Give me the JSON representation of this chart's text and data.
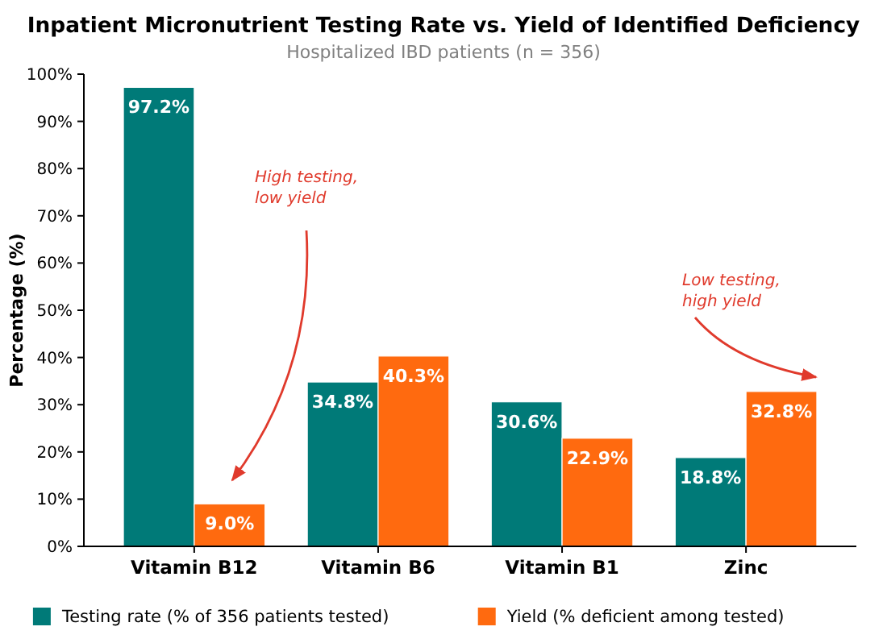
{
  "chart_data": {
    "type": "bar",
    "title": "Inpatient Micronutrient Testing Rate vs. Yield of Identified Deficiency",
    "subtitle": "Hospitalized IBD patients (n = 356)",
    "ylabel": "Percentage (%)",
    "categories": [
      "Vitamin B12",
      "Vitamin B6",
      "Vitamin B1",
      "Zinc"
    ],
    "series": [
      {
        "name": "Testing rate (% of 356 patients tested)",
        "color": "#007a78",
        "values": [
          97.2,
          34.8,
          30.6,
          18.8
        ],
        "value_labels": [
          "97.2%",
          "34.8%",
          "30.6%",
          "18.8%"
        ]
      },
      {
        "name": "Yield (% deficient among tested)",
        "color": "#ff6a0f",
        "values": [
          9.0,
          40.3,
          22.9,
          32.8
        ],
        "value_labels": [
          "9.0%",
          "40.3%",
          "22.9%",
          "32.8%"
        ]
      }
    ],
    "ylim": [
      0,
      100
    ],
    "yticks": [
      {
        "value": 0,
        "label": "0%"
      },
      {
        "value": 10,
        "label": "10%"
      },
      {
        "value": 20,
        "label": "20%"
      },
      {
        "value": 30,
        "label": "30%"
      },
      {
        "value": 40,
        "label": "40%"
      },
      {
        "value": 50,
        "label": "50%"
      },
      {
        "value": 60,
        "label": "60%"
      },
      {
        "value": 70,
        "label": "70%"
      },
      {
        "value": 80,
        "label": "80%"
      },
      {
        "value": 90,
        "label": "90%"
      },
      {
        "value": 100,
        "label": "100%"
      }
    ],
    "annotations": [
      "High testing,\nlow yield",
      "Low testing,\nhigh yield"
    ],
    "grid": false,
    "legend": "bottom"
  }
}
